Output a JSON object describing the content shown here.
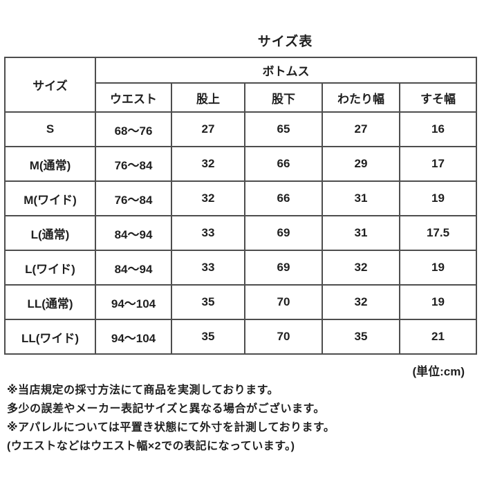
{
  "title": "サイズ表",
  "table": {
    "corner_header": "サイズ",
    "group_header": "ボトムス",
    "columns": [
      "ウエスト",
      "股上",
      "股下",
      "わたり幅",
      "すそ幅"
    ],
    "rows": [
      {
        "size": "S",
        "values": [
          "68〜76",
          "27",
          "65",
          "27",
          "16"
        ]
      },
      {
        "size": "M(通常)",
        "values": [
          "76〜84",
          "32",
          "66",
          "29",
          "17"
        ]
      },
      {
        "size": "M(ワイド)",
        "values": [
          "76〜84",
          "32",
          "66",
          "31",
          "19"
        ]
      },
      {
        "size": "L(通常)",
        "values": [
          "84〜94",
          "33",
          "69",
          "31",
          "17.5"
        ]
      },
      {
        "size": "L(ワイド)",
        "values": [
          "84〜94",
          "33",
          "69",
          "32",
          "19"
        ]
      },
      {
        "size": "LL(通常)",
        "values": [
          "94〜104",
          "35",
          "70",
          "32",
          "19"
        ]
      },
      {
        "size": "LL(ワイド)",
        "values": [
          "94〜104",
          "35",
          "70",
          "35",
          "21"
        ]
      }
    ]
  },
  "unit_note": "(単位:cm)",
  "footnotes": [
    "※当店規定の採寸方法にて商品を実測しております。",
    "多少の誤差やメーカー表記サイズと異なる場合がございます。",
    "※アパレルについては平置き状態にて外寸を計測しております。",
    "(ウエストなどはウエスト幅×2での表記になっています。)"
  ],
  "colors": {
    "text": "#1f1f1f",
    "border": "#4d4d4d",
    "background": "#ffffff"
  }
}
